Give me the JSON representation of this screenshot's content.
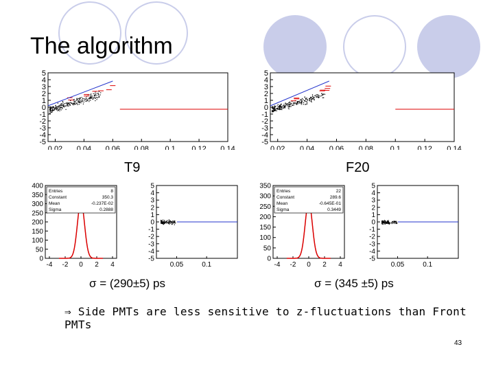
{
  "slide": {
    "title": "The algorithm",
    "labels": {
      "left": "T9",
      "right": "F20"
    },
    "sigma": {
      "left": "σ = (290±5) ps",
      "right": "σ = (345 ±5) ps"
    },
    "note": "⇒ Side PMTs are less sensitive to z-fluctuations than Front PMTs",
    "page_number": "43"
  },
  "chart_data": [
    {
      "type": "scatter",
      "name": "T9 top",
      "xlim": [
        0.015,
        0.14
      ],
      "ylim": [
        -5,
        5
      ],
      "x_ticks": [
        "0.02",
        "0.04",
        "0.06",
        "0.08",
        "0.1",
        "0.12",
        "0.14"
      ],
      "y_ticks": [
        "5",
        "4",
        "3",
        "2",
        "1",
        "0",
        "-1",
        "-2",
        "-3",
        "-4",
        "-5"
      ],
      "fit_line": [
        [
          0.015,
          0.2
        ],
        [
          0.06,
          3.8
        ]
      ],
      "flat_line": {
        "y": -0.3,
        "x": [
          0.065,
          0.14
        ]
      }
    },
    {
      "type": "scatter",
      "name": "F20 top",
      "xlim": [
        0.015,
        0.14
      ],
      "ylim": [
        -5,
        5
      ],
      "x_ticks": [
        "0.02",
        "0.04",
        "0.06",
        "0.08",
        "0.1",
        "0.12",
        "0.14"
      ],
      "y_ticks": [
        "5",
        "4",
        "3",
        "2",
        "1",
        "0",
        "-1",
        "-2",
        "-3",
        "-4",
        "-5"
      ],
      "fit_line": [
        [
          0.015,
          0.2
        ],
        [
          0.055,
          3.8
        ]
      ],
      "flat_line": {
        "y": -0.3,
        "x": [
          0.1,
          0.14
        ]
      }
    },
    {
      "type": "histogram",
      "name": "T9 residual",
      "x_ticks": [
        "-4",
        "-2",
        "0",
        "2",
        "4"
      ],
      "y_ticks": [
        "400",
        "350",
        "300",
        "250",
        "200",
        "150",
        "100",
        "50",
        "0"
      ],
      "stats": [
        [
          "Entries",
          "8"
        ],
        [
          "Constant",
          "350.3"
        ],
        [
          "Mean",
          "-0.237E-02"
        ],
        [
          "Sigma",
          "0.2888"
        ]
      ]
    },
    {
      "type": "scatter",
      "name": "T9 bottom right",
      "x_ticks": [
        "0.05",
        "0.1"
      ],
      "y_ticks": [
        "5",
        "4",
        "3",
        "2",
        "1",
        "0",
        "-1",
        "-2",
        "-3",
        "-4",
        "-5"
      ]
    },
    {
      "type": "histogram",
      "name": "F20 residual",
      "x_ticks": [
        "-4",
        "-2",
        "0",
        "2",
        "4"
      ],
      "y_ticks": [
        "350",
        "300",
        "250",
        "200",
        "150",
        "100",
        "50",
        "0"
      ],
      "stats": [
        [
          "Entries",
          "22"
        ],
        [
          "Constant",
          "289.6"
        ],
        [
          "Mean",
          "-0.645E-01"
        ],
        [
          "Sigma",
          "0.3449"
        ]
      ]
    },
    {
      "type": "scatter",
      "name": "F20 bottom right",
      "x_ticks": [
        "0.05",
        "0.1"
      ],
      "y_ticks": [
        "5",
        "4",
        "3",
        "2",
        "1",
        "0",
        "-1",
        "-2",
        "-3",
        "-4",
        "-5"
      ]
    }
  ]
}
